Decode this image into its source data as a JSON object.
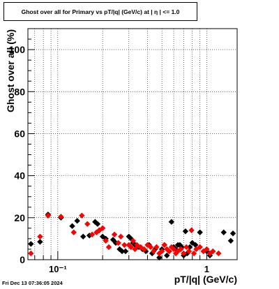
{
  "chart_data": {
    "type": "scatter",
    "title": "Ghost over all for Primary vs pT/|q| (GeV/c) at |  η  | <= 1.0",
    "xlabel": "pT/|q| (GeV/c)",
    "ylabel": "Ghost over all (%)",
    "x_scale": "log",
    "xlim": [
      0.063,
      1.6
    ],
    "ylim": [
      0,
      110
    ],
    "x_ticks": [
      {
        "value": 0.1,
        "label": "10⁻¹"
      },
      {
        "value": 1,
        "label": "1"
      }
    ],
    "y_ticks": [
      {
        "value": 0,
        "label": "0"
      },
      {
        "value": 20,
        "label": "20"
      },
      {
        "value": 40,
        "label": "40"
      },
      {
        "value": 60,
        "label": "60"
      },
      {
        "value": 80,
        "label": "80"
      },
      {
        "value": 100,
        "label": "100"
      }
    ],
    "grid": true,
    "series": [
      {
        "color": "#000000",
        "x": [
          0.066,
          0.076,
          0.086,
          0.105,
          0.125,
          0.135,
          0.148,
          0.163,
          0.178,
          0.185,
          0.19,
          0.2,
          0.21,
          0.235,
          0.245,
          0.26,
          0.27,
          0.285,
          0.3,
          0.31,
          0.32,
          0.33,
          0.34,
          0.35,
          0.37,
          0.39,
          0.41,
          0.43,
          0.45,
          0.48,
          0.5,
          0.52,
          0.54,
          0.56,
          0.58,
          0.6,
          0.62,
          0.64,
          0.66,
          0.68,
          0.7,
          0.72,
          0.74,
          0.77,
          0.8,
          0.84,
          0.9,
          1.0,
          1.05,
          1.3,
          1.45,
          1.5
        ],
        "y": [
          7.5,
          8.5,
          21.5,
          20,
          16,
          18.5,
          11,
          11.5,
          18,
          17,
          14,
          11,
          10,
          9.5,
          8,
          5,
          4,
          4,
          11,
          10,
          8,
          7,
          6,
          6,
          5,
          4,
          7,
          3,
          5,
          1,
          5,
          7,
          2,
          4,
          18,
          6,
          5,
          7,
          7,
          6,
          2,
          13.5,
          3,
          6,
          8,
          7,
          13,
          4,
          2,
          13,
          9,
          12.5
        ]
      },
      {
        "color": "#ff0000",
        "x": [
          0.066,
          0.076,
          0.086,
          0.105,
          0.128,
          0.145,
          0.158,
          0.17,
          0.182,
          0.19,
          0.2,
          0.21,
          0.22,
          0.24,
          0.255,
          0.265,
          0.28,
          0.3,
          0.31,
          0.32,
          0.33,
          0.34,
          0.36,
          0.38,
          0.4,
          0.42,
          0.44,
          0.46,
          0.48,
          0.5,
          0.52,
          0.54,
          0.56,
          0.58,
          0.6,
          0.62,
          0.64,
          0.67,
          0.7,
          0.73,
          0.76,
          0.79,
          0.82,
          0.85,
          0.9,
          0.95,
          1.0,
          1.05,
          1.1,
          1.2
        ],
        "y": [
          3,
          11,
          21,
          20.5,
          13,
          21,
          17,
          12,
          13,
          14,
          15,
          9,
          6,
          12,
          8,
          11,
          7,
          7,
          6,
          9,
          5,
          7,
          6,
          5,
          7,
          6,
          4,
          6,
          3,
          4,
          7,
          5,
          4,
          6,
          5,
          3,
          4,
          5,
          3,
          6,
          4,
          14,
          3,
          5,
          6,
          4,
          5,
          3,
          4,
          3
        ]
      }
    ]
  },
  "footer": {
    "timestamp": "Fri Dec 13 07:36:05 2024"
  }
}
